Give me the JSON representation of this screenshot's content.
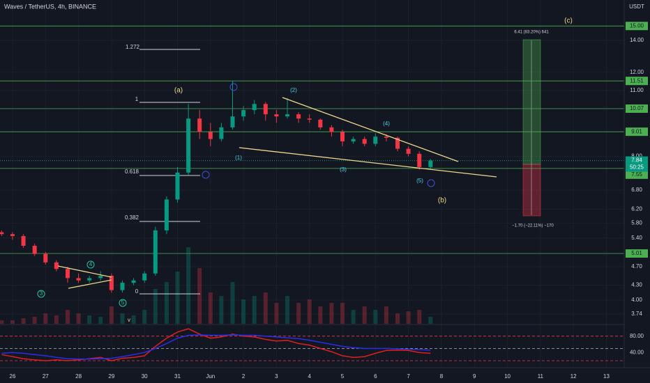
{
  "chart_data": {
    "type": "candlestick",
    "title": "Waves / TetherUS, 4h, BINANCE",
    "currency": "USDT",
    "log_scale": true,
    "grid": true,
    "up_color": "#089981",
    "down_color": "#f23645",
    "level_color": "#4caf50",
    "ylim": [
      3.57,
      17.0
    ],
    "yticks": [
      3.74,
      {
        "value": 4,
        "label": "4.00"
      },
      {
        "value": 4.3,
        "label": "4.30"
      },
      {
        "value": 4.7,
        "label": "4.70"
      },
      {
        "value": 5.4,
        "label": "5.40"
      },
      {
        "value": 5.8,
        "label": "5.80"
      },
      {
        "value": 6.2,
        "label": "6.20"
      },
      {
        "value": 6.8,
        "label": "6.80"
      },
      {
        "value": 8,
        "label": "8.00"
      },
      {
        "value": 11,
        "label": "11.00"
      },
      {
        "value": 12,
        "label": "12.00"
      },
      {
        "value": 14,
        "label": "14.00"
      }
    ],
    "xlim": [
      -0.38,
      18.54
    ],
    "xticks": [
      {
        "value": 0,
        "label": "26"
      },
      {
        "value": 1,
        "label": "27"
      },
      {
        "value": 2,
        "label": "28"
      },
      {
        "value": 3,
        "label": "29"
      },
      {
        "value": 4,
        "label": "30"
      },
      {
        "value": 5,
        "label": "31"
      },
      {
        "value": 6,
        "label": "Jun"
      },
      {
        "value": 7,
        "label": "2"
      },
      {
        "value": 8,
        "label": "3"
      },
      {
        "value": 9,
        "label": "4"
      },
      {
        "value": 10,
        "label": "5"
      },
      {
        "value": 11,
        "label": "6"
      },
      {
        "value": 12,
        "label": "7"
      },
      {
        "value": 13,
        "label": "8"
      },
      {
        "value": 14,
        "label": "9"
      },
      {
        "value": 15,
        "label": "10"
      },
      {
        "value": 16,
        "label": "11"
      },
      {
        "value": 17,
        "label": "12"
      },
      {
        "value": 18,
        "label": "13"
      }
    ],
    "x": [
      -0.33,
      0,
      0.33,
      0.67,
      1,
      1.33,
      1.67,
      2,
      2.33,
      2.67,
      3,
      3.33,
      3.67,
      4,
      4.33,
      4.67,
      5,
      5.33,
      5.67,
      6,
      6.33,
      6.67,
      7,
      7.33,
      7.67,
      8,
      8.33,
      8.67,
      9,
      9.33,
      9.67,
      10,
      10.33,
      10.67,
      11,
      11.33,
      11.67,
      12,
      12.33,
      12.67
    ],
    "open": [
      5.55,
      5.5,
      5.45,
      5.2,
      5.0,
      4.8,
      4.65,
      4.45,
      4.4,
      4.45,
      4.5,
      4.2,
      4.35,
      4.4,
      4.55,
      5.6,
      6.5,
      7.4,
      9.6,
      9.0,
      8.7,
      9.2,
      9.7,
      10.0,
      10.3,
      9.8,
      9.7,
      9.8,
      9.6,
      9.55,
      9.2,
      9.0,
      8.6,
      8.7,
      8.5,
      8.8,
      8.75,
      8.3,
      8.1,
      7.6
    ],
    "high": [
      5.6,
      5.55,
      5.5,
      5.25,
      5.05,
      4.85,
      4.7,
      4.55,
      4.5,
      4.6,
      4.55,
      4.4,
      4.45,
      4.6,
      5.7,
      6.6,
      7.6,
      10.3,
      10.0,
      9.4,
      9.4,
      11.5,
      10.2,
      10.5,
      10.4,
      10.0,
      10.6,
      9.9,
      9.8,
      9.6,
      9.3,
      9.1,
      8.8,
      8.8,
      8.95,
      8.9,
      8.8,
      8.4,
      8.2,
      7.9
    ],
    "low": [
      5.45,
      5.35,
      5.15,
      4.95,
      4.75,
      4.6,
      4.35,
      4.35,
      4.35,
      4.4,
      4.15,
      4.15,
      4.3,
      4.35,
      4.5,
      5.5,
      6.4,
      7.3,
      8.7,
      8.4,
      8.6,
      9.1,
      9.5,
      9.8,
      9.5,
      9.4,
      9.6,
      9.4,
      9.4,
      9.1,
      8.8,
      8.4,
      8.5,
      8.4,
      8.4,
      8.6,
      8.2,
      8.0,
      7.5,
      7.55
    ],
    "close": [
      5.5,
      5.45,
      5.2,
      5.0,
      4.8,
      4.65,
      4.45,
      4.4,
      4.45,
      4.5,
      4.2,
      4.35,
      4.4,
      4.55,
      5.6,
      6.5,
      7.4,
      9.6,
      9.0,
      8.7,
      9.2,
      9.7,
      10.0,
      10.3,
      9.8,
      9.7,
      9.8,
      9.6,
      9.55,
      9.2,
      9.0,
      8.6,
      8.7,
      8.5,
      8.8,
      8.75,
      8.3,
      8.1,
      7.6,
      7.84
    ],
    "volume": [
      5,
      5,
      8,
      10,
      15,
      12,
      20,
      15,
      12,
      10,
      25,
      15,
      12,
      20,
      50,
      60,
      75,
      110,
      80,
      45,
      40,
      60,
      35,
      40,
      45,
      30,
      40,
      30,
      35,
      25,
      30,
      30,
      20,
      25,
      20,
      25,
      15,
      18,
      20,
      10
    ],
    "levels": [
      {
        "value": 15,
        "label": "15.00"
      },
      11.51,
      10.07,
      9.01,
      7.55,
      5.01
    ],
    "last_price": 7.84,
    "countdown": "50:25",
    "annotations": [
      "(a)",
      "(b)",
      "(c)",
      "(1)",
      "(2)",
      "(3)",
      "(4)",
      "(5)",
      "3",
      "4",
      "5",
      "v",
      "1.272",
      "1",
      "0.618",
      "0.382",
      "0",
      "6.41 (83.20%) 641",
      "−1.70 (−22.11%) −170"
    ],
    "oscillator": {
      "ylim": [
        3,
        105
      ],
      "yticks": [
        {
          "value": 80,
          "label": "80.00"
        },
        {
          "value": 40,
          "label": "40.00"
        }
      ],
      "levels": [
        80,
        50,
        20
      ],
      "level_colors": [
        "#f23645",
        "#b2b5be",
        "#f23645"
      ],
      "series": [
        {
          "color": "#e0201f",
          "values": [
            35,
            30,
            25,
            22,
            20,
            22,
            20,
            22,
            25,
            28,
            20,
            26,
            28,
            32,
            55,
            75,
            90,
            98,
            85,
            75,
            78,
            85,
            80,
            78,
            72,
            68,
            70,
            62,
            58,
            50,
            42,
            32,
            28,
            30,
            38,
            45,
            46,
            45,
            40,
            38
          ]
        },
        {
          "color": "#2a2ee8",
          "values": [
            38,
            40,
            38,
            35,
            32,
            28,
            25,
            24,
            24,
            25,
            26,
            30,
            35,
            40,
            50,
            62,
            75,
            82,
            83,
            82,
            82,
            83,
            82,
            82,
            80,
            78,
            76,
            74,
            70,
            65,
            60,
            55,
            52,
            50,
            50,
            50,
            49,
            48,
            47,
            46
          ]
        }
      ]
    }
  }
}
